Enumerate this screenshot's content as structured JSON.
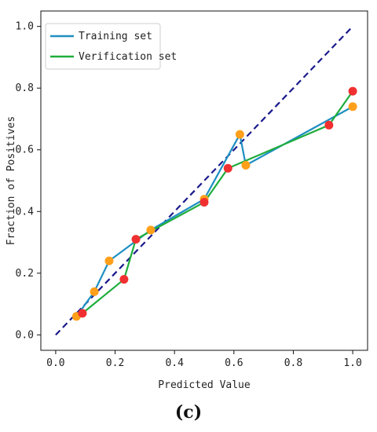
{
  "caption": "(c)",
  "chart_data": {
    "type": "line",
    "title": "",
    "xlabel": "Predicted Value",
    "ylabel": "Fraction of Positives",
    "xlim": [
      -0.05,
      1.05
    ],
    "ylim": [
      -0.05,
      1.05
    ],
    "xticks": [
      "0.0",
      "0.2",
      "0.4",
      "0.6",
      "0.8",
      "1.0"
    ],
    "yticks": [
      "0.0",
      "0.2",
      "0.4",
      "0.6",
      "0.8",
      "1.0"
    ],
    "legend_position": "top-left",
    "grid": false,
    "reference_line": {
      "x": [
        0,
        1
      ],
      "y": [
        0,
        1
      ],
      "style": "dashed",
      "color": "#1a1a8c"
    },
    "series": [
      {
        "name": "Training set",
        "color": "#1f8fc2",
        "marker_color": "#ff9f1a",
        "x": [
          0.07,
          0.13,
          0.18,
          0.32,
          0.5,
          0.62,
          0.64,
          1.0
        ],
        "y": [
          0.06,
          0.14,
          0.24,
          0.34,
          0.44,
          0.65,
          0.55,
          0.74
        ]
      },
      {
        "name": "Verification set",
        "color": "#1fad3d",
        "marker_color": "#f03030",
        "x": [
          0.09,
          0.23,
          0.27,
          0.5,
          0.58,
          0.92,
          1.0
        ],
        "y": [
          0.07,
          0.18,
          0.31,
          0.43,
          0.54,
          0.68,
          0.79
        ]
      }
    ]
  }
}
